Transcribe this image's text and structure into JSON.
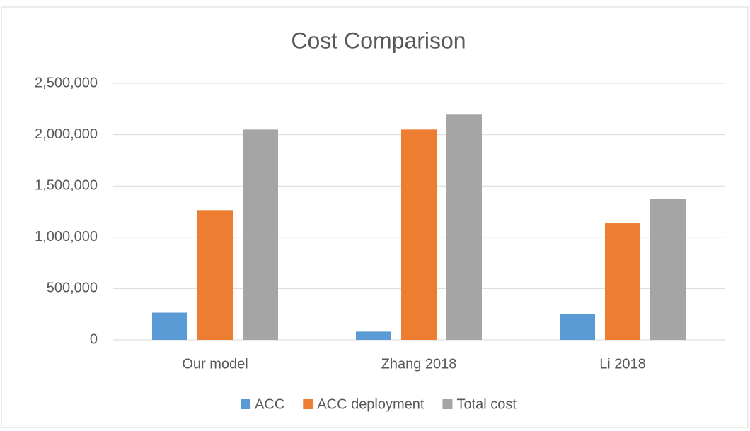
{
  "chart_data": {
    "type": "bar",
    "title": "Cost Comparison",
    "categories": [
      "Our model",
      "Zhang 2018",
      "Li 2018"
    ],
    "series": [
      {
        "name": "ACC",
        "color": "#5b9bd5",
        "values": [
          265000,
          80000,
          255000
        ]
      },
      {
        "name": "ACC deployment",
        "color": "#ed7d31",
        "values": [
          1265000,
          2050000,
          1136000
        ]
      },
      {
        "name": "Total cost",
        "color": "#a5a5a5",
        "values": [
          2050000,
          2195000,
          1377000
        ]
      }
    ],
    "ylim": [
      0,
      2500000
    ],
    "yticks": [
      0,
      {
        "value": 500000,
        "label": "500,000"
      },
      {
        "value": 1000000,
        "label": "1,000,000"
      },
      {
        "value": 1500000,
        "label": "1,500,000"
      },
      {
        "value": 2000000,
        "label": "2,000,000"
      },
      {
        "value": 2500000,
        "label": "2,500,000"
      }
    ],
    "grid": true,
    "legend": "bottom"
  }
}
